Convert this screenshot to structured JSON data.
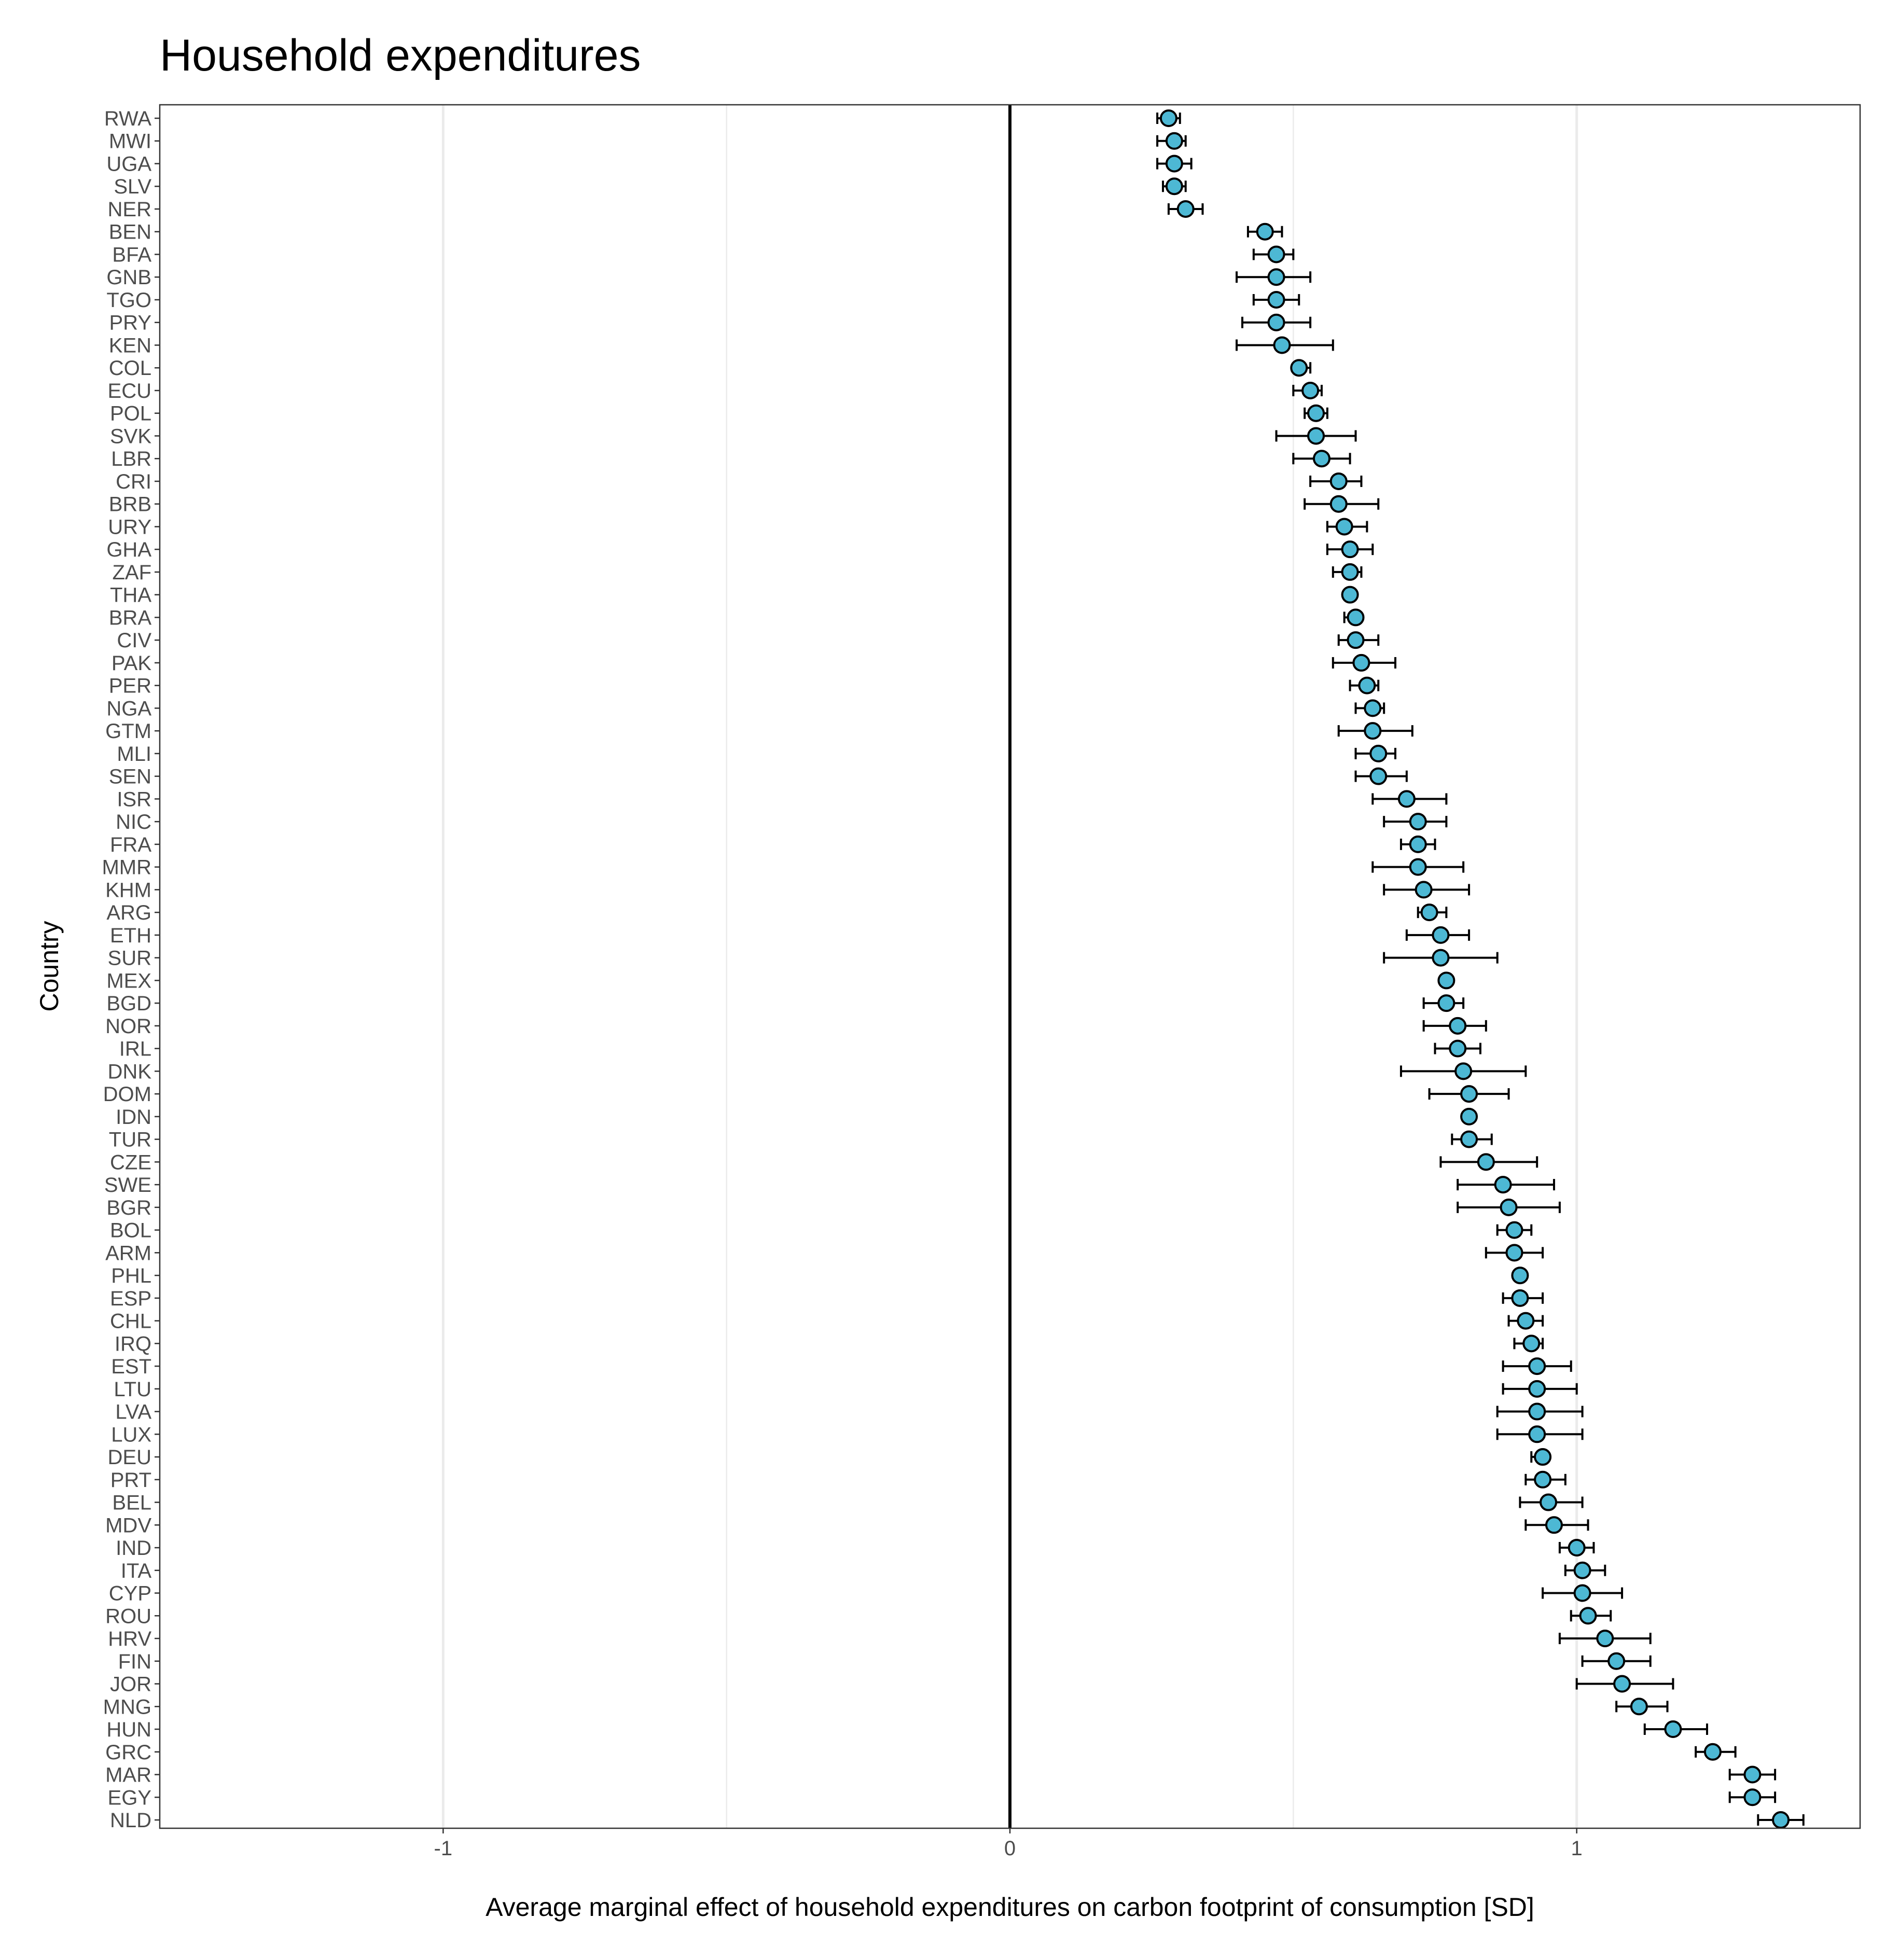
{
  "chart_data": {
    "type": "scatter",
    "title": "Household expenditures",
    "xlabel": "Average marginal effect of household expenditures on carbon footprint of consumption [SD]",
    "ylabel": "Country",
    "xlim": [
      -1.5,
      1.5
    ],
    "xticks": [
      -1,
      0,
      1
    ],
    "xtick_labels": [
      "-1",
      "0",
      "1"
    ],
    "grid": "vertical",
    "reference_line": 0,
    "point_color": "#4db8d4",
    "points": [
      {
        "country": "RWA",
        "estimate": 0.28,
        "lo": 0.26,
        "hi": 0.3
      },
      {
        "country": "MWI",
        "estimate": 0.29,
        "lo": 0.26,
        "hi": 0.31
      },
      {
        "country": "UGA",
        "estimate": 0.29,
        "lo": 0.26,
        "hi": 0.32
      },
      {
        "country": "SLV",
        "estimate": 0.29,
        "lo": 0.27,
        "hi": 0.31
      },
      {
        "country": "NER",
        "estimate": 0.31,
        "lo": 0.28,
        "hi": 0.34
      },
      {
        "country": "BEN",
        "estimate": 0.45,
        "lo": 0.42,
        "hi": 0.48
      },
      {
        "country": "BFA",
        "estimate": 0.47,
        "lo": 0.43,
        "hi": 0.5
      },
      {
        "country": "GNB",
        "estimate": 0.47,
        "lo": 0.4,
        "hi": 0.53
      },
      {
        "country": "TGO",
        "estimate": 0.47,
        "lo": 0.43,
        "hi": 0.51
      },
      {
        "country": "PRY",
        "estimate": 0.47,
        "lo": 0.41,
        "hi": 0.53
      },
      {
        "country": "KEN",
        "estimate": 0.48,
        "lo": 0.4,
        "hi": 0.57
      },
      {
        "country": "COL",
        "estimate": 0.51,
        "lo": 0.5,
        "hi": 0.53
      },
      {
        "country": "ECU",
        "estimate": 0.53,
        "lo": 0.5,
        "hi": 0.55
      },
      {
        "country": "POL",
        "estimate": 0.54,
        "lo": 0.52,
        "hi": 0.56
      },
      {
        "country": "SVK",
        "estimate": 0.54,
        "lo": 0.47,
        "hi": 0.61
      },
      {
        "country": "LBR",
        "estimate": 0.55,
        "lo": 0.5,
        "hi": 0.6
      },
      {
        "country": "CRI",
        "estimate": 0.58,
        "lo": 0.53,
        "hi": 0.62
      },
      {
        "country": "BRB",
        "estimate": 0.58,
        "lo": 0.52,
        "hi": 0.65
      },
      {
        "country": "URY",
        "estimate": 0.59,
        "lo": 0.56,
        "hi": 0.63
      },
      {
        "country": "GHA",
        "estimate": 0.6,
        "lo": 0.56,
        "hi": 0.64
      },
      {
        "country": "ZAF",
        "estimate": 0.6,
        "lo": 0.57,
        "hi": 0.62
      },
      {
        "country": "THA",
        "estimate": 0.6,
        "lo": 0.59,
        "hi": 0.61
      },
      {
        "country": "BRA",
        "estimate": 0.61,
        "lo": 0.59,
        "hi": 0.62
      },
      {
        "country": "CIV",
        "estimate": 0.61,
        "lo": 0.58,
        "hi": 0.65
      },
      {
        "country": "PAK",
        "estimate": 0.62,
        "lo": 0.57,
        "hi": 0.68
      },
      {
        "country": "PER",
        "estimate": 0.63,
        "lo": 0.6,
        "hi": 0.65
      },
      {
        "country": "NGA",
        "estimate": 0.64,
        "lo": 0.61,
        "hi": 0.66
      },
      {
        "country": "GTM",
        "estimate": 0.64,
        "lo": 0.58,
        "hi": 0.71
      },
      {
        "country": "MLI",
        "estimate": 0.65,
        "lo": 0.61,
        "hi": 0.68
      },
      {
        "country": "SEN",
        "estimate": 0.65,
        "lo": 0.61,
        "hi": 0.7
      },
      {
        "country": "ISR",
        "estimate": 0.7,
        "lo": 0.64,
        "hi": 0.77
      },
      {
        "country": "NIC",
        "estimate": 0.72,
        "lo": 0.66,
        "hi": 0.77
      },
      {
        "country": "FRA",
        "estimate": 0.72,
        "lo": 0.69,
        "hi": 0.75
      },
      {
        "country": "MMR",
        "estimate": 0.72,
        "lo": 0.64,
        "hi": 0.8
      },
      {
        "country": "KHM",
        "estimate": 0.73,
        "lo": 0.66,
        "hi": 0.81
      },
      {
        "country": "ARG",
        "estimate": 0.74,
        "lo": 0.72,
        "hi": 0.77
      },
      {
        "country": "ETH",
        "estimate": 0.76,
        "lo": 0.7,
        "hi": 0.81
      },
      {
        "country": "SUR",
        "estimate": 0.76,
        "lo": 0.66,
        "hi": 0.86
      },
      {
        "country": "MEX",
        "estimate": 0.77,
        "lo": 0.76,
        "hi": 0.78
      },
      {
        "country": "BGD",
        "estimate": 0.77,
        "lo": 0.73,
        "hi": 0.8
      },
      {
        "country": "NOR",
        "estimate": 0.79,
        "lo": 0.73,
        "hi": 0.84
      },
      {
        "country": "IRL",
        "estimate": 0.79,
        "lo": 0.75,
        "hi": 0.83
      },
      {
        "country": "DNK",
        "estimate": 0.8,
        "lo": 0.69,
        "hi": 0.91
      },
      {
        "country": "DOM",
        "estimate": 0.81,
        "lo": 0.74,
        "hi": 0.88
      },
      {
        "country": "IDN",
        "estimate": 0.81,
        "lo": 0.8,
        "hi": 0.82
      },
      {
        "country": "TUR",
        "estimate": 0.81,
        "lo": 0.78,
        "hi": 0.85
      },
      {
        "country": "CZE",
        "estimate": 0.84,
        "lo": 0.76,
        "hi": 0.93
      },
      {
        "country": "SWE",
        "estimate": 0.87,
        "lo": 0.79,
        "hi": 0.96
      },
      {
        "country": "BGR",
        "estimate": 0.88,
        "lo": 0.79,
        "hi": 0.97
      },
      {
        "country": "BOL",
        "estimate": 0.89,
        "lo": 0.86,
        "hi": 0.92
      },
      {
        "country": "ARM",
        "estimate": 0.89,
        "lo": 0.84,
        "hi": 0.94
      },
      {
        "country": "PHL",
        "estimate": 0.9,
        "lo": 0.89,
        "hi": 0.91
      },
      {
        "country": "ESP",
        "estimate": 0.9,
        "lo": 0.87,
        "hi": 0.94
      },
      {
        "country": "CHL",
        "estimate": 0.91,
        "lo": 0.88,
        "hi": 0.94
      },
      {
        "country": "IRQ",
        "estimate": 0.92,
        "lo": 0.89,
        "hi": 0.94
      },
      {
        "country": "EST",
        "estimate": 0.93,
        "lo": 0.87,
        "hi": 0.99
      },
      {
        "country": "LTU",
        "estimate": 0.93,
        "lo": 0.87,
        "hi": 1.0
      },
      {
        "country": "LVA",
        "estimate": 0.93,
        "lo": 0.86,
        "hi": 1.01
      },
      {
        "country": "LUX",
        "estimate": 0.93,
        "lo": 0.86,
        "hi": 1.01
      },
      {
        "country": "DEU",
        "estimate": 0.94,
        "lo": 0.92,
        "hi": 0.95
      },
      {
        "country": "PRT",
        "estimate": 0.94,
        "lo": 0.91,
        "hi": 0.98
      },
      {
        "country": "BEL",
        "estimate": 0.95,
        "lo": 0.9,
        "hi": 1.01
      },
      {
        "country": "MDV",
        "estimate": 0.96,
        "lo": 0.91,
        "hi": 1.02
      },
      {
        "country": "IND",
        "estimate": 1.0,
        "lo": 0.97,
        "hi": 1.03
      },
      {
        "country": "ITA",
        "estimate": 1.01,
        "lo": 0.98,
        "hi": 1.05
      },
      {
        "country": "CYP",
        "estimate": 1.01,
        "lo": 0.94,
        "hi": 1.08
      },
      {
        "country": "ROU",
        "estimate": 1.02,
        "lo": 0.99,
        "hi": 1.06
      },
      {
        "country": "HRV",
        "estimate": 1.05,
        "lo": 0.97,
        "hi": 1.13
      },
      {
        "country": "FIN",
        "estimate": 1.07,
        "lo": 1.01,
        "hi": 1.13
      },
      {
        "country": "JOR",
        "estimate": 1.08,
        "lo": 1.0,
        "hi": 1.17
      },
      {
        "country": "MNG",
        "estimate": 1.11,
        "lo": 1.07,
        "hi": 1.16
      },
      {
        "country": "HUN",
        "estimate": 1.17,
        "lo": 1.12,
        "hi": 1.23
      },
      {
        "country": "GRC",
        "estimate": 1.24,
        "lo": 1.21,
        "hi": 1.28
      },
      {
        "country": "MAR",
        "estimate": 1.31,
        "lo": 1.27,
        "hi": 1.35
      },
      {
        "country": "EGY",
        "estimate": 1.31,
        "lo": 1.27,
        "hi": 1.35
      },
      {
        "country": "NLD",
        "estimate": 1.36,
        "lo": 1.32,
        "hi": 1.4
      }
    ]
  }
}
